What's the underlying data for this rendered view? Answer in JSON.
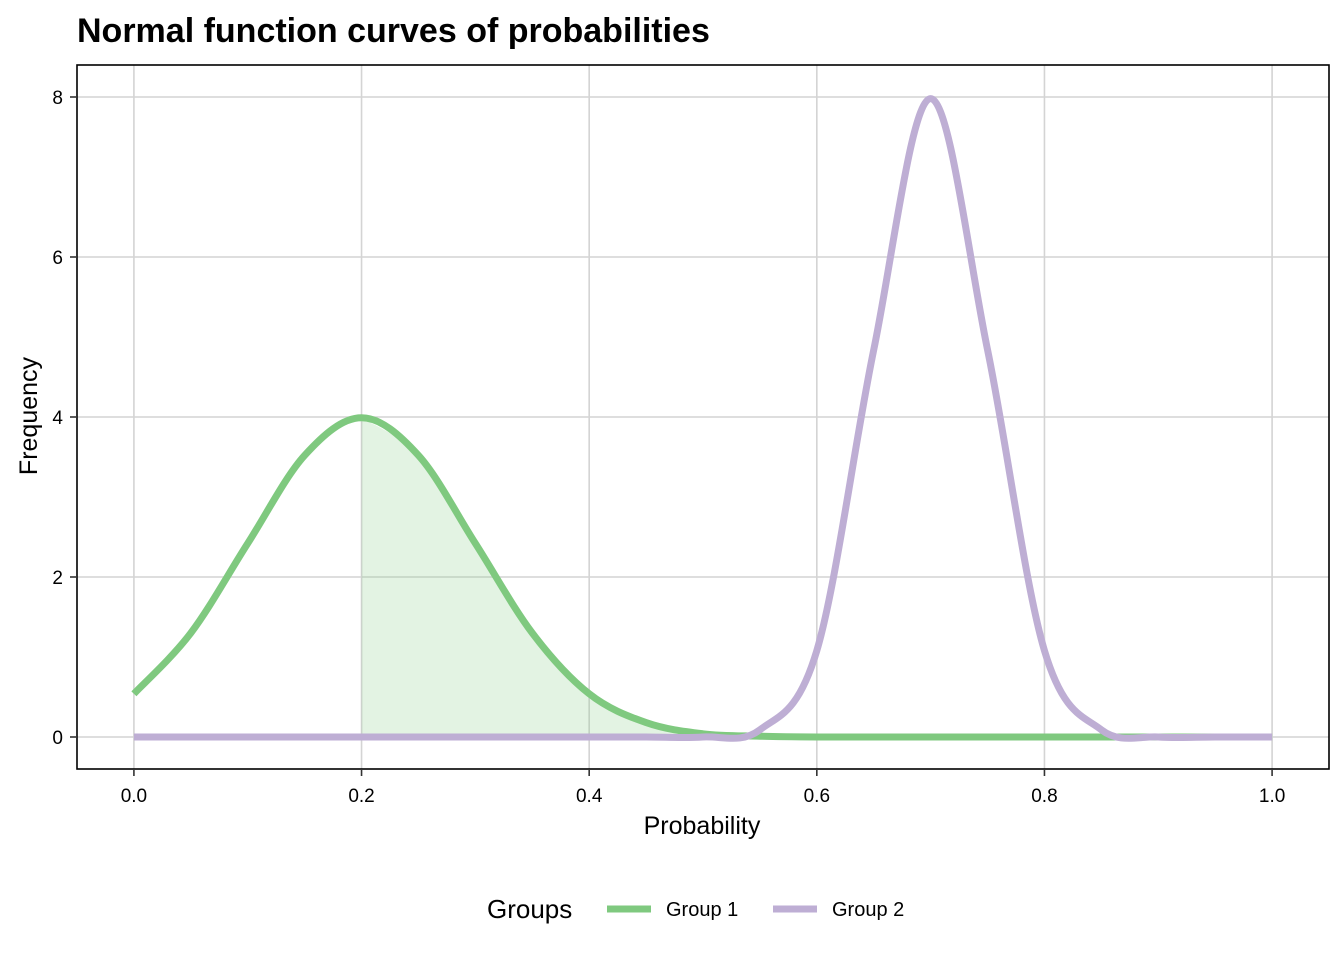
{
  "chart_data": {
    "type": "line",
    "title": "Normal function curves of probabilities",
    "xlabel": "Probability",
    "ylabel": "Frequency",
    "xlim": [
      -0.05,
      1.05
    ],
    "ylim": [
      -0.4,
      8.4
    ],
    "x_ticks": [
      0.0,
      0.2,
      0.4,
      0.6,
      0.8,
      1.0
    ],
    "x_tick_labels": [
      "0.0",
      "0.2",
      "0.4",
      "0.6",
      "0.8",
      "1.0"
    ],
    "y_ticks": [
      0,
      2,
      4,
      6,
      8
    ],
    "y_tick_labels": [
      "0",
      "2",
      "4",
      "6",
      "8"
    ],
    "grid": true,
    "legend": {
      "title": "Groups",
      "position": "bottom"
    },
    "x": [
      0.0,
      0.05,
      0.1,
      0.15,
      0.2,
      0.25,
      0.3,
      0.35,
      0.4,
      0.45,
      0.5,
      0.55,
      0.6,
      0.65,
      0.7,
      0.75,
      0.8,
      0.85,
      0.9,
      0.95,
      1.0
    ],
    "series": [
      {
        "name": "Group 1",
        "color": "#7fc97f",
        "values": [
          0.54,
          1.3,
          2.42,
          3.52,
          3.99,
          3.52,
          2.42,
          1.3,
          0.54,
          0.18,
          0.04,
          0.01,
          0.0,
          0.0,
          0.0,
          0.0,
          0.0,
          0.0,
          0.0,
          0.0,
          0.0
        ],
        "shaded_region": [
          0.2,
          0.5
        ]
      },
      {
        "name": "Group 2",
        "color": "#beaed4",
        "values": [
          0.0,
          0.0,
          0.0,
          0.0,
          0.0,
          0.0,
          0.0,
          0.0,
          0.0,
          0.0,
          0.0,
          0.09,
          1.08,
          4.84,
          7.98,
          4.84,
          1.08,
          0.09,
          0.0,
          0.0,
          0.0
        ]
      }
    ]
  }
}
